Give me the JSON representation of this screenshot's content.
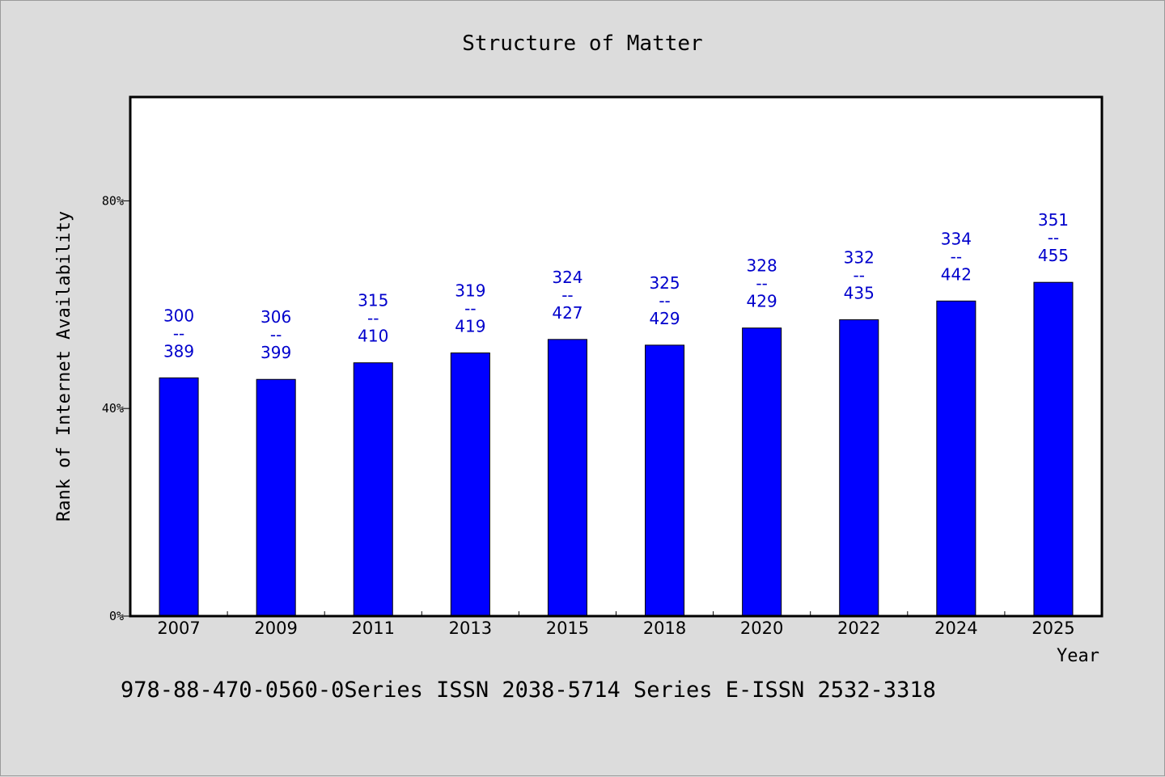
{
  "chart_data": {
    "type": "bar",
    "title": "Structure of Matter",
    "xlabel": "Year",
    "ylabel": "Rank of Internet Availability",
    "footer": "978-88-470-0560-0Series ISSN 2038-5714 Series E-ISSN 2532-3318",
    "categories": [
      "2007",
      "2009",
      "2011",
      "2013",
      "2015",
      "2018",
      "2020",
      "2022",
      "2024",
      "2025"
    ],
    "values": [
      0.459,
      0.456,
      0.488,
      0.507,
      0.533,
      0.522,
      0.555,
      0.571,
      0.607,
      0.643
    ],
    "annotations": [
      [
        "300",
        "--",
        "389"
      ],
      [
        "306",
        "--",
        "399"
      ],
      [
        "315",
        "--",
        "410"
      ],
      [
        "319",
        "--",
        "419"
      ],
      [
        "324",
        "--",
        "427"
      ],
      [
        "325",
        "--",
        "429"
      ],
      [
        "328",
        "--",
        "429"
      ],
      [
        "332",
        "--",
        "435"
      ],
      [
        "334",
        "--",
        "442"
      ],
      [
        "351",
        "--",
        "455"
      ]
    ],
    "yticks": [
      0,
      0.4,
      0.8
    ],
    "ytick_labels": [
      "0%",
      "40%",
      "80%"
    ],
    "ylim": [
      0,
      1.0
    ],
    "grid": false,
    "colors": {
      "bar": "#0000ff",
      "annotation": "#0000cc",
      "background": "#dcdcdc",
      "plot_bg": "#ffffff"
    }
  }
}
